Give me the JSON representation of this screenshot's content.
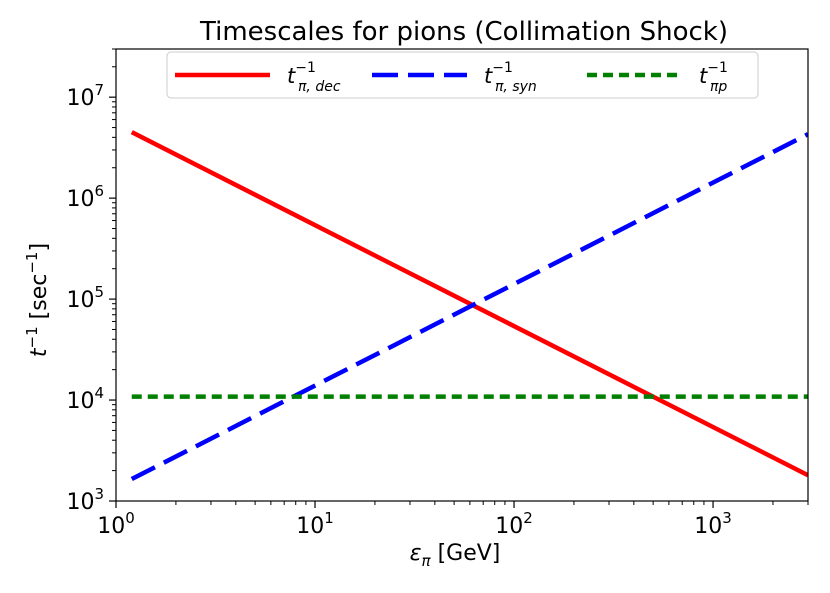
{
  "chart_data": {
    "type": "line",
    "title": "Timescales for pions (Collimation Shock)",
    "xlabel": "επ [GeV]",
    "xlabel_parts": {
      "symbol": "ε",
      "sub": "π",
      "unit": "[GeV]"
    },
    "ylabel_parts": {
      "t": "t",
      "sup": "−1",
      "unit": "[sec",
      "unit_sup": "−1",
      "close": "]"
    },
    "xscale": "log",
    "yscale": "log",
    "xlim": [
      1,
      3000
    ],
    "ylim": [
      1000,
      30000000
    ],
    "xticks": [
      {
        "value": 1,
        "base": "10",
        "exp": "0"
      },
      {
        "value": 10,
        "base": "10",
        "exp": "1"
      },
      {
        "value": 100,
        "base": "10",
        "exp": "2"
      },
      {
        "value": 1000,
        "base": "10",
        "exp": "3"
      }
    ],
    "yticks": [
      {
        "value": 1000,
        "base": "10",
        "exp": "3"
      },
      {
        "value": 10000,
        "base": "10",
        "exp": "4"
      },
      {
        "value": 100000,
        "base": "10",
        "exp": "5"
      },
      {
        "value": 1000000,
        "base": "10",
        "exp": "6"
      },
      {
        "value": 10000000,
        "base": "10",
        "exp": "7"
      }
    ],
    "legend_position": "top-center",
    "series": [
      {
        "name": "tπ,dec−1",
        "label_sub": "π, dec",
        "label_sup": "−1",
        "color": "#ff0000",
        "style": "solid",
        "x": [
          1.2,
          3000
        ],
        "y": [
          4500000,
          1800
        ]
      },
      {
        "name": "tπ,syn−1",
        "label_sub": "π, syn",
        "label_sup": "−1",
        "color": "#0000ff",
        "style": "dashed",
        "x": [
          1.2,
          3000
        ],
        "y": [
          1650,
          4300000
        ]
      },
      {
        "name": "tπp−1",
        "label_sub": "πp",
        "label_sup": "−1",
        "color": "#008000",
        "style": "dotted",
        "x": [
          1.2,
          3000
        ],
        "y": [
          10800,
          10800
        ]
      }
    ]
  }
}
